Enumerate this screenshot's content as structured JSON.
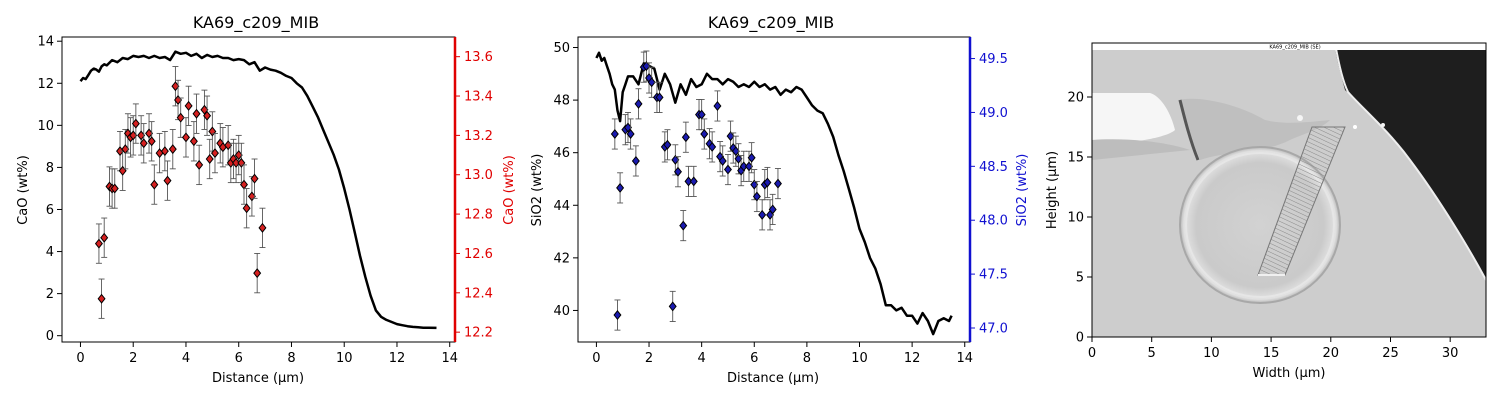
{
  "chart_data": [
    {
      "type": "scatter",
      "title": "KA69_c209_MIB",
      "xlabel": "Distance (µm)",
      "ylabel": "CaO (wt%)",
      "y2label": "CaO (wt%)",
      "xlim": [
        -0.7,
        14.2
      ],
      "ylim": [
        -0.3,
        14.2
      ],
      "y2lim": [
        12.15,
        13.7
      ],
      "xticks": [
        0,
        2,
        4,
        6,
        8,
        10,
        12,
        14
      ],
      "yticks": [
        0,
        2,
        4,
        6,
        8,
        10,
        12,
        14
      ],
      "y2ticks": [
        12.2,
        12.4,
        12.6,
        12.8,
        13.0,
        13.2,
        13.4,
        13.6
      ],
      "y2_tick_labels": [
        "12.2",
        "12.4",
        "12.6",
        "12.8",
        "13.0",
        "13.2",
        "13.4",
        "13.6"
      ],
      "y2_color": "#e00000",
      "marker_color": "#d62020",
      "profile_line": {
        "x": [
          0,
          0.1,
          0.2,
          0.3,
          0.4,
          0.5,
          0.6,
          0.7,
          0.8,
          0.9,
          1.0,
          1.2,
          1.4,
          1.6,
          1.8,
          2.0,
          2.2,
          2.4,
          2.6,
          2.8,
          3.0,
          3.2,
          3.4,
          3.6,
          3.8,
          4.0,
          4.2,
          4.4,
          4.6,
          4.8,
          5.0,
          5.2,
          5.4,
          5.6,
          5.8,
          6.0,
          6.2,
          6.4,
          6.6,
          6.8,
          7.0,
          7.2,
          7.4,
          7.6,
          7.8,
          8.0,
          8.2,
          8.4,
          8.6,
          8.8,
          9.0,
          9.2,
          9.4,
          9.6,
          9.8,
          10.0,
          10.2,
          10.4,
          10.6,
          10.8,
          11.0,
          11.2,
          11.4,
          11.6,
          11.8,
          12.0,
          12.2,
          12.4,
          12.6,
          12.8,
          13.0,
          13.2,
          13.5
        ],
        "y": [
          12.1,
          12.25,
          12.2,
          12.4,
          12.6,
          12.7,
          12.65,
          12.55,
          12.8,
          12.9,
          12.85,
          13.1,
          13.0,
          13.2,
          13.15,
          13.3,
          13.25,
          13.3,
          13.2,
          13.3,
          13.2,
          13.25,
          13.1,
          13.5,
          13.4,
          13.45,
          13.3,
          13.4,
          13.2,
          13.35,
          13.25,
          13.3,
          13.2,
          13.2,
          13.1,
          13.15,
          13.1,
          12.9,
          13.0,
          12.6,
          12.75,
          12.65,
          12.6,
          12.5,
          12.35,
          12.25,
          12.0,
          11.8,
          11.4,
          10.9,
          10.4,
          9.8,
          9.2,
          8.6,
          7.9,
          7.0,
          6.0,
          4.9,
          3.8,
          2.8,
          1.9,
          1.2,
          0.9,
          0.75,
          0.65,
          0.55,
          0.5,
          0.45,
          0.42,
          0.4,
          0.38,
          0.38,
          0.37
        ]
      },
      "points": [
        {
          "x": 0.7,
          "y": 12.65,
          "err": 0.1
        },
        {
          "x": 0.8,
          "y": 12.37,
          "err": 0.1
        },
        {
          "x": 0.9,
          "y": 12.68,
          "err": 0.1
        },
        {
          "x": 1.1,
          "y": 12.94,
          "err": 0.1
        },
        {
          "x": 1.2,
          "y": 12.93,
          "err": 0.1
        },
        {
          "x": 1.3,
          "y": 12.93,
          "err": 0.1
        },
        {
          "x": 1.5,
          "y": 13.12,
          "err": 0.1
        },
        {
          "x": 1.6,
          "y": 13.02,
          "err": 0.1
        },
        {
          "x": 1.7,
          "y": 13.13,
          "err": 0.1
        },
        {
          "x": 1.8,
          "y": 13.21,
          "err": 0.1
        },
        {
          "x": 1.9,
          "y": 13.19,
          "err": 0.1
        },
        {
          "x": 2.0,
          "y": 13.2,
          "err": 0.1
        },
        {
          "x": 2.1,
          "y": 13.26,
          "err": 0.1
        },
        {
          "x": 2.3,
          "y": 13.2,
          "err": 0.1
        },
        {
          "x": 2.4,
          "y": 13.16,
          "err": 0.1
        },
        {
          "x": 2.6,
          "y": 13.21,
          "err": 0.1
        },
        {
          "x": 2.7,
          "y": 13.17,
          "err": 0.1
        },
        {
          "x": 2.8,
          "y": 12.95,
          "err": 0.1
        },
        {
          "x": 3.0,
          "y": 13.11,
          "err": 0.1
        },
        {
          "x": 3.2,
          "y": 13.12,
          "err": 0.1
        },
        {
          "x": 3.3,
          "y": 12.97,
          "err": 0.1
        },
        {
          "x": 3.5,
          "y": 13.13,
          "err": 0.1
        },
        {
          "x": 3.6,
          "y": 13.45,
          "err": 0.1
        },
        {
          "x": 3.7,
          "y": 13.38,
          "err": 0.1
        },
        {
          "x": 3.8,
          "y": 13.29,
          "err": 0.1
        },
        {
          "x": 4.0,
          "y": 13.19,
          "err": 0.1
        },
        {
          "x": 4.1,
          "y": 13.35,
          "err": 0.1
        },
        {
          "x": 4.3,
          "y": 13.17,
          "err": 0.1
        },
        {
          "x": 4.4,
          "y": 13.31,
          "err": 0.1
        },
        {
          "x": 4.5,
          "y": 13.05,
          "err": 0.1
        },
        {
          "x": 4.7,
          "y": 13.33,
          "err": 0.1
        },
        {
          "x": 4.8,
          "y": 13.3,
          "err": 0.1
        },
        {
          "x": 4.9,
          "y": 13.08,
          "err": 0.1
        },
        {
          "x": 5.0,
          "y": 13.22,
          "err": 0.1
        },
        {
          "x": 5.1,
          "y": 13.11,
          "err": 0.1
        },
        {
          "x": 5.3,
          "y": 13.16,
          "err": 0.1
        },
        {
          "x": 5.4,
          "y": 13.14,
          "err": 0.1
        },
        {
          "x": 5.6,
          "y": 13.15,
          "err": 0.1
        },
        {
          "x": 5.7,
          "y": 13.06,
          "err": 0.1
        },
        {
          "x": 5.8,
          "y": 13.08,
          "err": 0.1
        },
        {
          "x": 5.9,
          "y": 13.06,
          "err": 0.1
        },
        {
          "x": 6.0,
          "y": 13.1,
          "err": 0.1
        },
        {
          "x": 6.1,
          "y": 13.06,
          "err": 0.1
        },
        {
          "x": 6.2,
          "y": 12.95,
          "err": 0.1
        },
        {
          "x": 6.3,
          "y": 12.83,
          "err": 0.1
        },
        {
          "x": 6.5,
          "y": 12.89,
          "err": 0.1
        },
        {
          "x": 6.6,
          "y": 12.98,
          "err": 0.1
        },
        {
          "x": 6.7,
          "y": 12.5,
          "err": 0.1
        },
        {
          "x": 6.9,
          "y": 12.73,
          "err": 0.1
        }
      ]
    },
    {
      "type": "scatter",
      "title": "KA69_c209_MIB",
      "xlabel": "Distance (µm)",
      "ylabel": "SiO2 (wt%)",
      "y2label": "SiO2 (wt%)",
      "xlim": [
        -0.7,
        14.2
      ],
      "ylim": [
        38.8,
        50.4
      ],
      "y2lim": [
        46.87,
        49.7
      ],
      "xticks": [
        0,
        2,
        4,
        6,
        8,
        10,
        12,
        14
      ],
      "yticks": [
        40,
        42,
        44,
        46,
        48,
        50
      ],
      "y2ticks": [
        47.0,
        47.5,
        48.0,
        48.5,
        49.0,
        49.5
      ],
      "y2_tick_labels": [
        "47.0",
        "47.5",
        "48.0",
        "48.5",
        "49.0",
        "49.5"
      ],
      "y2_color": "#1010d0",
      "marker_color": "#1a1ab0",
      "profile_line": {
        "x": [
          0,
          0.1,
          0.2,
          0.3,
          0.4,
          0.5,
          0.6,
          0.7,
          0.8,
          0.9,
          1.0,
          1.1,
          1.2,
          1.4,
          1.6,
          1.8,
          2.0,
          2.2,
          2.4,
          2.6,
          2.8,
          3.0,
          3.2,
          3.4,
          3.6,
          3.8,
          4.0,
          4.2,
          4.4,
          4.6,
          4.8,
          5.0,
          5.2,
          5.4,
          5.6,
          5.8,
          6.0,
          6.2,
          6.4,
          6.6,
          6.8,
          7.0,
          7.2,
          7.4,
          7.6,
          7.8,
          8.0,
          8.2,
          8.4,
          8.6,
          8.8,
          9.0,
          9.2,
          9.4,
          9.6,
          9.8,
          10.0,
          10.2,
          10.4,
          10.6,
          10.8,
          11.0,
          11.2,
          11.4,
          11.6,
          11.8,
          12.0,
          12.2,
          12.4,
          12.6,
          12.8,
          13.0,
          13.2,
          13.4,
          13.5
        ],
        "y": [
          49.6,
          49.8,
          49.5,
          49.6,
          49.3,
          49.0,
          48.6,
          48.4,
          47.6,
          47.2,
          48.3,
          48.6,
          48.9,
          48.9,
          48.6,
          49.4,
          49.3,
          49.2,
          48.4,
          49.0,
          48.6,
          47.9,
          48.6,
          48.2,
          48.8,
          48.5,
          48.6,
          49.0,
          48.8,
          48.8,
          48.6,
          48.8,
          48.7,
          48.5,
          48.6,
          48.5,
          48.7,
          48.5,
          48.6,
          48.4,
          48.5,
          48.2,
          48.4,
          48.3,
          48.5,
          48.4,
          48.1,
          47.8,
          47.6,
          47.5,
          47.1,
          46.6,
          45.9,
          45.3,
          44.6,
          43.9,
          43.1,
          42.6,
          42.0,
          41.6,
          41.0,
          40.2,
          40.2,
          40.0,
          40.1,
          39.8,
          39.8,
          39.5,
          39.9,
          39.6,
          39.1,
          39.6,
          39.7,
          39.6,
          39.8
        ]
      },
      "points": [
        {
          "x": 0.7,
          "y": 48.8,
          "err": 0.14
        },
        {
          "x": 0.8,
          "y": 47.12,
          "err": 0.14
        },
        {
          "x": 0.9,
          "y": 48.3,
          "err": 0.14
        },
        {
          "x": 1.1,
          "y": 48.84,
          "err": 0.14
        },
        {
          "x": 1.2,
          "y": 48.86,
          "err": 0.14
        },
        {
          "x": 1.3,
          "y": 48.8,
          "err": 0.14
        },
        {
          "x": 1.5,
          "y": 48.55,
          "err": 0.14
        },
        {
          "x": 1.6,
          "y": 49.08,
          "err": 0.14
        },
        {
          "x": 1.8,
          "y": 49.42,
          "err": 0.14
        },
        {
          "x": 1.9,
          "y": 49.43,
          "err": 0.14
        },
        {
          "x": 2.0,
          "y": 49.32,
          "err": 0.14
        },
        {
          "x": 2.1,
          "y": 49.28,
          "err": 0.14
        },
        {
          "x": 2.3,
          "y": 49.14,
          "err": 0.14
        },
        {
          "x": 2.4,
          "y": 49.14,
          "err": 0.14
        },
        {
          "x": 2.6,
          "y": 48.68,
          "err": 0.14
        },
        {
          "x": 2.7,
          "y": 48.7,
          "err": 0.14
        },
        {
          "x": 2.9,
          "y": 47.2,
          "err": 0.14
        },
        {
          "x": 3.0,
          "y": 48.56,
          "err": 0.14
        },
        {
          "x": 3.1,
          "y": 48.45,
          "err": 0.14
        },
        {
          "x": 3.3,
          "y": 47.95,
          "err": 0.14
        },
        {
          "x": 3.4,
          "y": 48.77,
          "err": 0.14
        },
        {
          "x": 3.5,
          "y": 48.36,
          "err": 0.14
        },
        {
          "x": 3.7,
          "y": 48.36,
          "err": 0.14
        },
        {
          "x": 3.9,
          "y": 48.98,
          "err": 0.14
        },
        {
          "x": 4.0,
          "y": 48.98,
          "err": 0.14
        },
        {
          "x": 4.1,
          "y": 48.8,
          "err": 0.14
        },
        {
          "x": 4.3,
          "y": 48.71,
          "err": 0.14
        },
        {
          "x": 4.4,
          "y": 48.68,
          "err": 0.14
        },
        {
          "x": 4.6,
          "y": 49.06,
          "err": 0.14
        },
        {
          "x": 4.7,
          "y": 48.59,
          "err": 0.14
        },
        {
          "x": 4.8,
          "y": 48.55,
          "err": 0.14
        },
        {
          "x": 5.0,
          "y": 48.47,
          "err": 0.14
        },
        {
          "x": 5.1,
          "y": 48.78,
          "err": 0.14
        },
        {
          "x": 5.2,
          "y": 48.67,
          "err": 0.14
        },
        {
          "x": 5.3,
          "y": 48.64,
          "err": 0.14
        },
        {
          "x": 5.4,
          "y": 48.57,
          "err": 0.14
        },
        {
          "x": 5.5,
          "y": 48.46,
          "err": 0.14
        },
        {
          "x": 5.6,
          "y": 48.5,
          "err": 0.14
        },
        {
          "x": 5.8,
          "y": 48.5,
          "err": 0.14
        },
        {
          "x": 5.9,
          "y": 48.58,
          "err": 0.14
        },
        {
          "x": 6.0,
          "y": 48.33,
          "err": 0.14
        },
        {
          "x": 6.1,
          "y": 48.22,
          "err": 0.14
        },
        {
          "x": 6.3,
          "y": 48.05,
          "err": 0.14
        },
        {
          "x": 6.4,
          "y": 48.33,
          "err": 0.14
        },
        {
          "x": 6.5,
          "y": 48.35,
          "err": 0.14
        },
        {
          "x": 6.6,
          "y": 48.05,
          "err": 0.14
        },
        {
          "x": 6.7,
          "y": 48.1,
          "err": 0.14
        },
        {
          "x": 6.9,
          "y": 48.34,
          "err": 0.14
        }
      ]
    },
    {
      "type": "image",
      "xlabel": "Width (µm)",
      "ylabel": "Height (µm)",
      "xlim": [
        0,
        33
      ],
      "ylim": [
        0,
        24.5
      ],
      "xticks": [
        0,
        5,
        10,
        15,
        20,
        25,
        30
      ],
      "yticks": [
        0,
        5,
        10,
        15,
        20
      ],
      "image_caption": "KA69_c209_MIB (SE)"
    }
  ]
}
